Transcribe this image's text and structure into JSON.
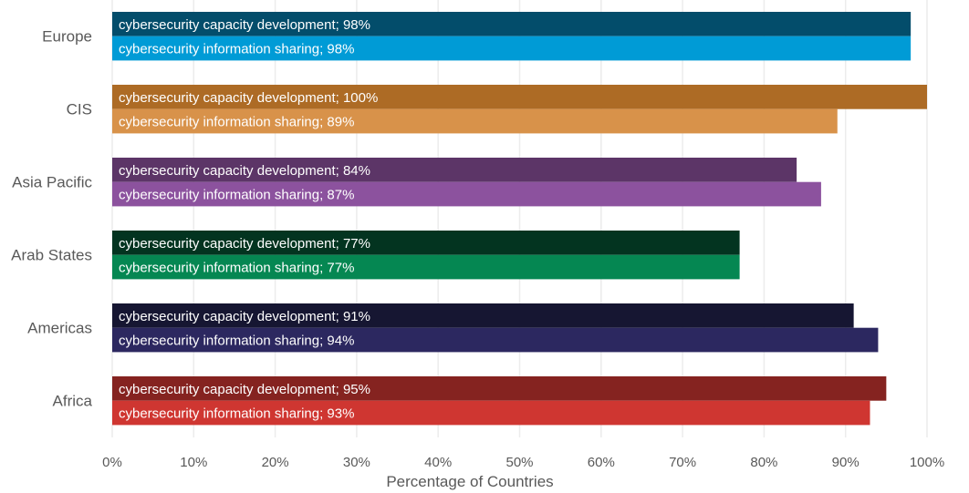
{
  "chart_data": {
    "type": "bar",
    "orientation": "horizontal",
    "title": "",
    "xlabel": "Percentage of Countries",
    "ylabel": "",
    "xlim": [
      0,
      100
    ],
    "x_ticks": [
      "0%",
      "10%",
      "20%",
      "30%",
      "40%",
      "50%",
      "60%",
      "70%",
      "80%",
      "90%",
      "100%"
    ],
    "grid": "vertical",
    "categories": [
      "Europe",
      "CIS",
      "Asia Pacific",
      "Arab States",
      "Americas",
      "Africa"
    ],
    "series": [
      {
        "name": "cybersecurity capacity development",
        "values": [
          98,
          100,
          84,
          77,
          91,
          95
        ],
        "colors": [
          "#034d6b",
          "#ad6b25",
          "#5c3567",
          "#033420",
          "#161632",
          "#852320"
        ]
      },
      {
        "name": "cybersecurity information sharing",
        "values": [
          98,
          89,
          87,
          77,
          94,
          93
        ],
        "colors": [
          "#009bd6",
          "#d8924a",
          "#8c529e",
          "#058752",
          "#2c2860",
          "#cf3631"
        ]
      }
    ],
    "data_labels": [
      [
        "cybersecurity capacity development; 98%",
        "cybersecurity information sharing; 98%"
      ],
      [
        "cybersecurity capacity development; 100%",
        "cybersecurity information sharing; 89%"
      ],
      [
        "cybersecurity capacity development; 84%",
        "cybersecurity information sharing; 87%"
      ],
      [
        "cybersecurity capacity development; 77%",
        "cybersecurity information sharing; 77%"
      ],
      [
        "cybersecurity capacity development; 91%",
        "cybersecurity information sharing; 94%"
      ],
      [
        "cybersecurity capacity development; 95%",
        "cybersecurity information sharing; 93%"
      ]
    ]
  }
}
